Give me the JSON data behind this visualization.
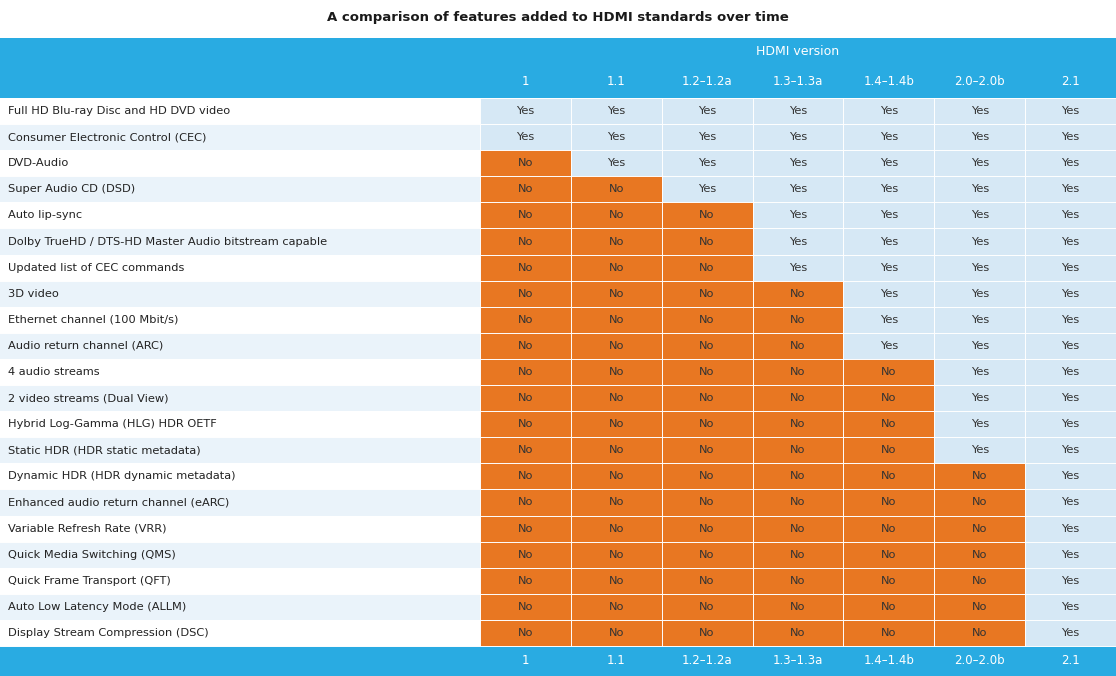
{
  "title": "A comparison of features added to HDMI standards over time",
  "title_color": "#1a1a1a",
  "header_bg": "#29ABE2",
  "header_text_color": "#FFFFFF",
  "header_label": "HDMI version",
  "versions": [
    "1",
    "1.1",
    "1.2–1.2a",
    "1.3–1.3a",
    "1.4–1.4b",
    "2.0–2.0b",
    "2.1"
  ],
  "features": [
    "Full HD Blu-ray Disc and HD DVD video",
    "Consumer Electronic Control (CEC)",
    "DVD-Audio",
    "Super Audio CD (DSD)",
    "Auto lip-sync",
    "Dolby TrueHD / DTS-HD Master Audio bitstream capable",
    "Updated list of CEC commands",
    "3D video",
    "Ethernet channel (100 Mbit/s)",
    "Audio return channel (ARC)",
    "4 audio streams",
    "2 video streams (Dual View)",
    "Hybrid Log-Gamma (HLG) HDR OETF",
    "Static HDR (HDR static metadata)",
    "Dynamic HDR (HDR dynamic metadata)",
    "Enhanced audio return channel (eARC)",
    "Variable Refresh Rate (VRR)",
    "Quick Media Switching (QMS)",
    "Quick Frame Transport (QFT)",
    "Auto Low Latency Mode (ALLM)",
    "Display Stream Compression (DSC)"
  ],
  "data": [
    [
      1,
      1,
      1,
      1,
      1,
      1,
      1
    ],
    [
      1,
      1,
      1,
      1,
      1,
      1,
      1
    ],
    [
      0,
      1,
      1,
      1,
      1,
      1,
      1
    ],
    [
      0,
      0,
      1,
      1,
      1,
      1,
      1
    ],
    [
      0,
      0,
      0,
      1,
      1,
      1,
      1
    ],
    [
      0,
      0,
      0,
      1,
      1,
      1,
      1
    ],
    [
      0,
      0,
      0,
      1,
      1,
      1,
      1
    ],
    [
      0,
      0,
      0,
      0,
      1,
      1,
      1
    ],
    [
      0,
      0,
      0,
      0,
      1,
      1,
      1
    ],
    [
      0,
      0,
      0,
      0,
      1,
      1,
      1
    ],
    [
      0,
      0,
      0,
      0,
      0,
      1,
      1
    ],
    [
      0,
      0,
      0,
      0,
      0,
      1,
      1
    ],
    [
      0,
      0,
      0,
      0,
      0,
      1,
      1
    ],
    [
      0,
      0,
      0,
      0,
      0,
      1,
      1
    ],
    [
      0,
      0,
      0,
      0,
      0,
      0,
      1
    ],
    [
      0,
      0,
      0,
      0,
      0,
      0,
      1
    ],
    [
      0,
      0,
      0,
      0,
      0,
      0,
      1
    ],
    [
      0,
      0,
      0,
      0,
      0,
      0,
      1
    ],
    [
      0,
      0,
      0,
      0,
      0,
      0,
      1
    ],
    [
      0,
      0,
      0,
      0,
      0,
      0,
      1
    ],
    [
      0,
      0,
      0,
      0,
      0,
      0,
      1
    ]
  ],
  "yes_color": "#D6E8F5",
  "no_color": "#E87722",
  "yes_text": "Yes",
  "no_text": "No",
  "yes_text_color": "#333333",
  "no_text_color": "#333333",
  "row_light_color": "#EAF3FA",
  "row_white_color": "#FFFFFF",
  "bottom_bar_color": "#29ABE2",
  "fig_width": 11.16,
  "fig_height": 6.76,
  "dpi": 100
}
